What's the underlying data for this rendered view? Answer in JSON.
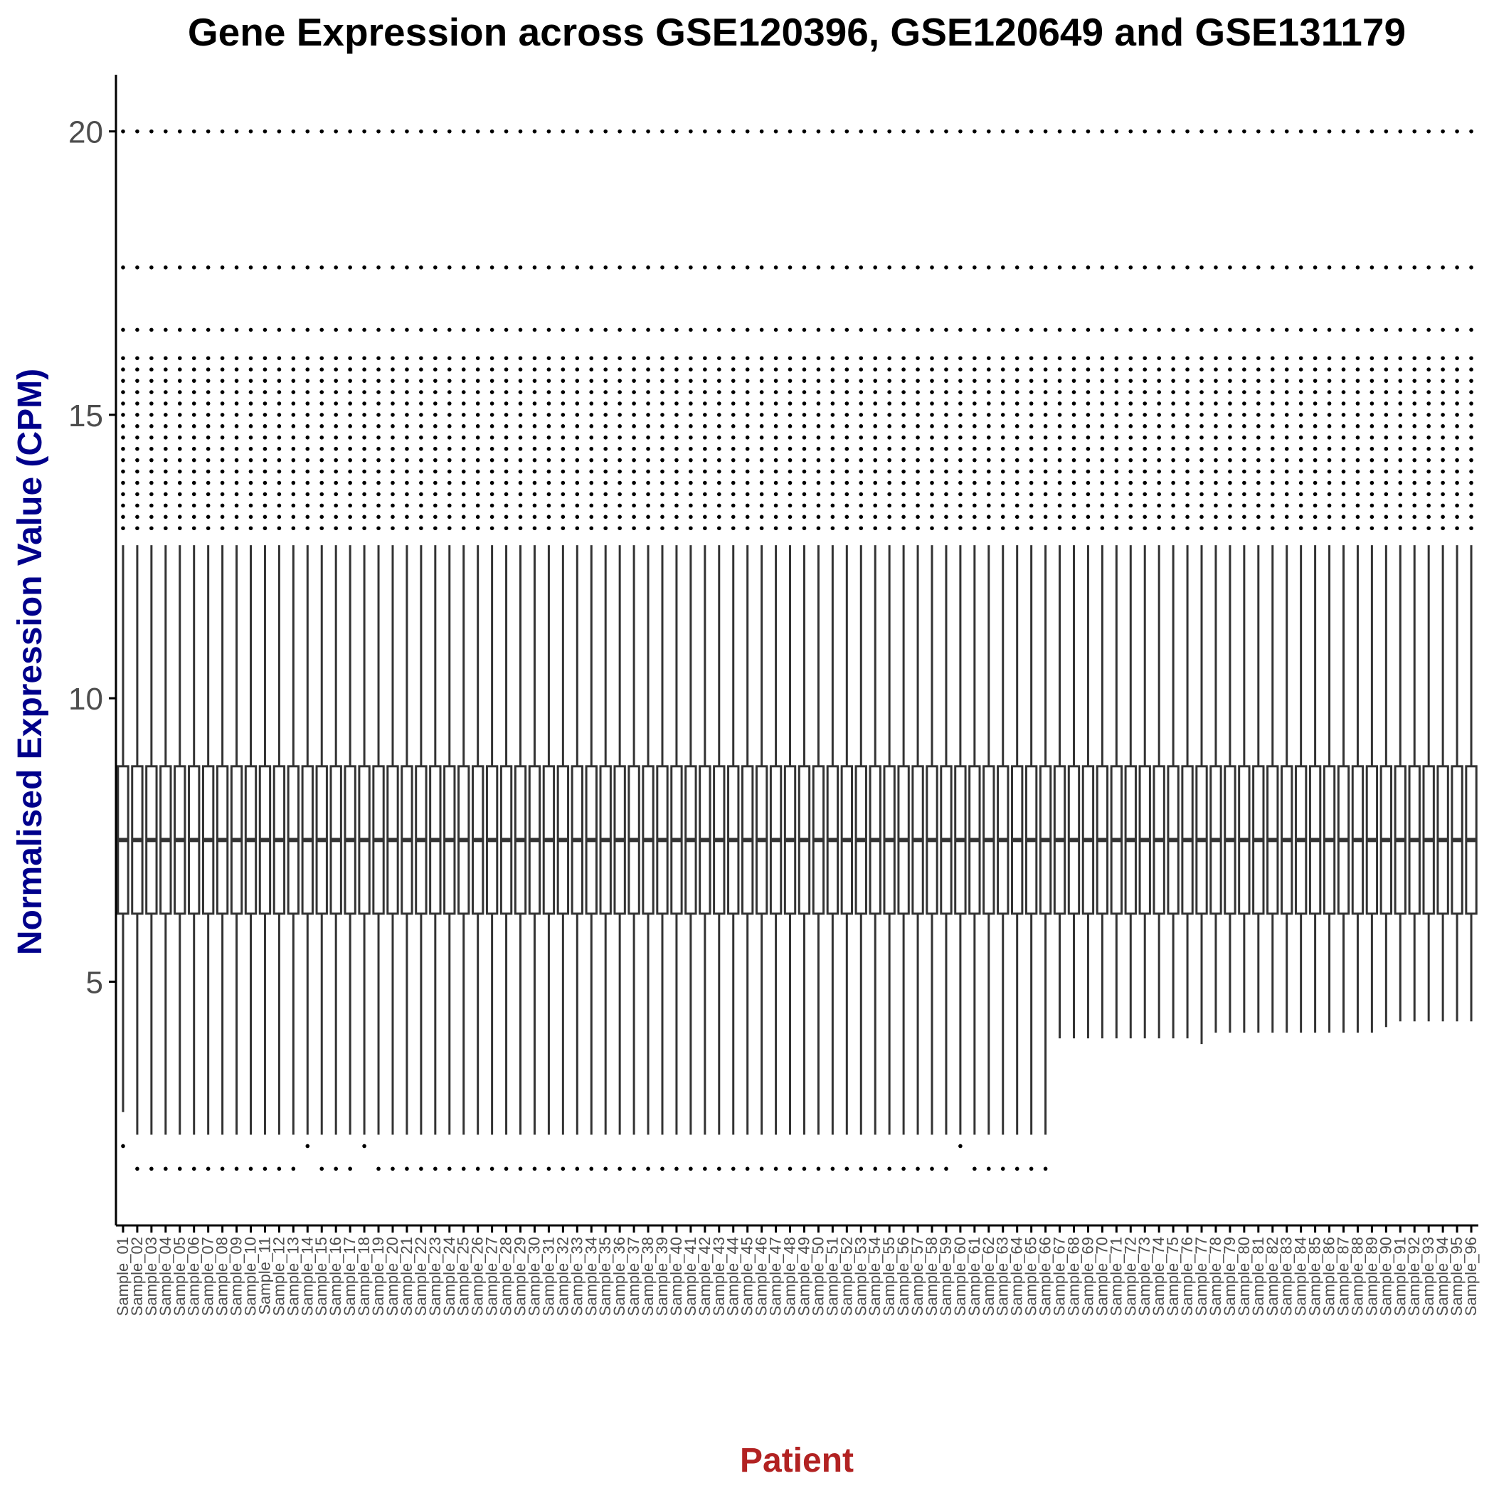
{
  "chart_data": {
    "type": "box",
    "title": "Gene Expression across GSE120396, GSE120649 and GSE131179",
    "xlabel": "Patient",
    "ylabel": "Normalised Expression Value (CPM)",
    "ylim": [
      0.7,
      21.0
    ],
    "yticks": [
      5,
      10,
      15,
      20
    ],
    "grid": false,
    "legend": "none",
    "n_samples": 96,
    "box_summary": {
      "q1": 6.2,
      "median": 7.5,
      "q3": 8.8,
      "upper_whisker": 12.7
    },
    "lower_whisker_by_sample": [
      2.7,
      2.3,
      2.3,
      2.3,
      2.3,
      2.3,
      2.3,
      2.3,
      2.3,
      2.3,
      2.3,
      2.3,
      2.3,
      2.3,
      2.3,
      2.3,
      2.3,
      2.3,
      2.3,
      2.3,
      2.3,
      2.3,
      2.3,
      2.3,
      2.3,
      2.3,
      2.3,
      2.3,
      2.3,
      2.3,
      2.3,
      2.3,
      2.3,
      2.3,
      2.3,
      2.3,
      2.3,
      2.3,
      2.3,
      2.3,
      2.3,
      2.3,
      2.3,
      2.3,
      2.3,
      2.3,
      2.3,
      2.3,
      2.3,
      2.3,
      2.3,
      2.3,
      2.3,
      2.3,
      2.3,
      2.3,
      2.3,
      2.3,
      2.3,
      2.3,
      2.3,
      2.3,
      2.3,
      2.3,
      2.3,
      2.3,
      4.0,
      4.0,
      4.0,
      4.0,
      4.0,
      4.0,
      4.0,
      4.0,
      4.0,
      4.0,
      3.9,
      4.1,
      4.1,
      4.1,
      4.1,
      4.1,
      4.1,
      4.1,
      4.1,
      4.1,
      4.1,
      4.1,
      4.1,
      4.2,
      4.3,
      4.3,
      4.3,
      4.3,
      4.3,
      4.3
    ],
    "upper_outliers": [
      13.0,
      13.2,
      13.4,
      13.6,
      13.8,
      14.0,
      14.2,
      14.4,
      14.6,
      14.8,
      15.0,
      15.2,
      15.4,
      15.6,
      15.8,
      16.0,
      16.5,
      17.6,
      20.0
    ],
    "lower_outliers": [
      1.7,
      2.1
    ],
    "lower_outlier_samples": 66,
    "x_tick_labels": [
      "Sample_01",
      "Sample_02",
      "Sample_03",
      "Sample_04",
      "Sample_05",
      "Sample_06",
      "Sample_07",
      "Sample_08",
      "Sample_09",
      "Sample_10",
      "Sample_11",
      "Sample_12",
      "Sample_13",
      "Sample_14",
      "Sample_15",
      "Sample_16",
      "Sample_17",
      "Sample_18",
      "Sample_19",
      "Sample_20",
      "Sample_21",
      "Sample_22",
      "Sample_23",
      "Sample_24",
      "Sample_25",
      "Sample_26",
      "Sample_27",
      "Sample_28",
      "Sample_29",
      "Sample_30",
      "Sample_31",
      "Sample_32",
      "Sample_33",
      "Sample_34",
      "Sample_35",
      "Sample_36",
      "Sample_37",
      "Sample_38",
      "Sample_39",
      "Sample_40",
      "Sample_41",
      "Sample_42",
      "Sample_43",
      "Sample_44",
      "Sample_45",
      "Sample_46",
      "Sample_47",
      "Sample_48",
      "Sample_49",
      "Sample_50",
      "Sample_51",
      "Sample_52",
      "Sample_53",
      "Sample_54",
      "Sample_55",
      "Sample_56",
      "Sample_57",
      "Sample_58",
      "Sample_59",
      "Sample_60",
      "Sample_61",
      "Sample_62",
      "Sample_63",
      "Sample_64",
      "Sample_65",
      "Sample_66",
      "Sample_67",
      "Sample_68",
      "Sample_69",
      "Sample_70",
      "Sample_71",
      "Sample_72",
      "Sample_73",
      "Sample_74",
      "Sample_75",
      "Sample_76",
      "Sample_77",
      "Sample_78",
      "Sample_79",
      "Sample_80",
      "Sample_81",
      "Sample_82",
      "Sample_83",
      "Sample_84",
      "Sample_85",
      "Sample_86",
      "Sample_87",
      "Sample_88",
      "Sample_89",
      "Sample_90",
      "Sample_91",
      "Sample_92",
      "Sample_93",
      "Sample_94",
      "Sample_95",
      "Sample_96"
    ],
    "colors": {
      "title": "#000000",
      "xlabel": "#b22222",
      "ylabel": "#00008b",
      "box": "#333333",
      "tick_label": "#4d4d4d",
      "axis": "#000000"
    }
  }
}
